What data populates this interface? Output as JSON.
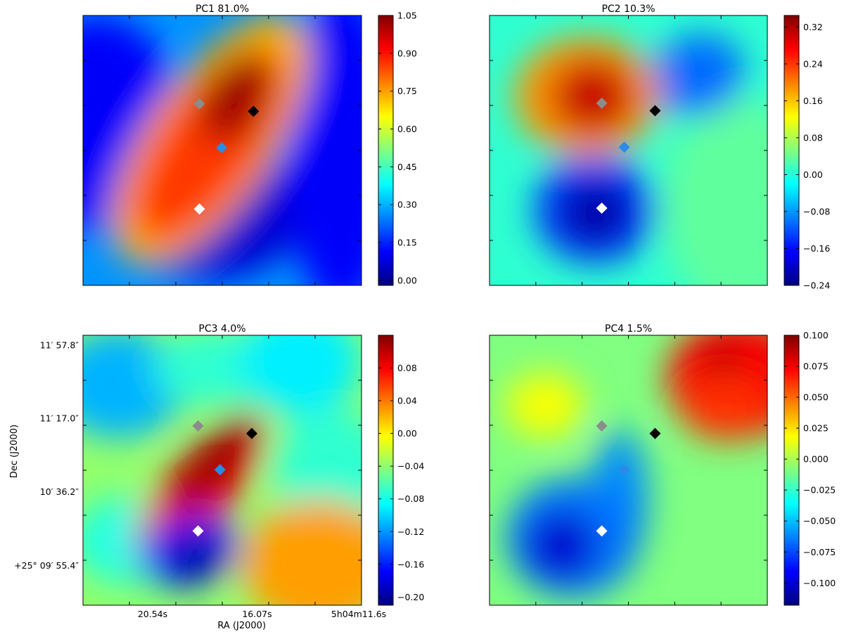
{
  "figure": {
    "xlabel": "RA (J2000)",
    "ylabel": "Dec (J2000)",
    "x_tick_labels": [
      "20.54s",
      "16.07s",
      "5h04m11.6s"
    ],
    "y_tick_labels": [
      "11′ 57.8″",
      "11′ 17.0″",
      "10′ 36.2″",
      "+25° 09′ 55.4″"
    ],
    "marker_colors": {
      "gray": "#8c8c8c",
      "black": "#000000",
      "blue": "#2a8ce8",
      "white": "#ffffff"
    }
  },
  "chart_data": [
    {
      "type": "heatmap",
      "title": "PC1 81.0%",
      "colormap": "jet",
      "clim": [
        -0.02,
        1.05
      ],
      "colorbar_ticks": [
        {
          "label": "1.05",
          "value": 1.05
        },
        {
          "label": "0.90",
          "value": 0.9
        },
        {
          "label": "0.75",
          "value": 0.75
        },
        {
          "label": "0.60",
          "value": 0.6
        },
        {
          "label": "0.45",
          "value": 0.45
        },
        {
          "label": "0.30",
          "value": 0.3
        },
        {
          "label": "0.15",
          "value": 0.15
        },
        {
          "label": "0.00",
          "value": 0.0
        }
      ],
      "markers": [
        "gray",
        "black",
        "blue",
        "white"
      ]
    },
    {
      "type": "heatmap",
      "title": "PC2 10.3%",
      "colormap": "jet",
      "clim": [
        -0.24,
        0.345
      ],
      "colorbar_ticks": [
        {
          "label": "0.32",
          "value": 0.32
        },
        {
          "label": "0.24",
          "value": 0.24
        },
        {
          "label": "0.16",
          "value": 0.16
        },
        {
          "label": "0.08",
          "value": 0.08
        },
        {
          "label": "0.00",
          "value": 0.0
        },
        {
          "label": "−0.08",
          "value": -0.08
        },
        {
          "label": "−0.16",
          "value": -0.16
        },
        {
          "label": "−0.24",
          "value": -0.24
        }
      ],
      "markers": [
        "gray",
        "black",
        "blue",
        "white"
      ]
    },
    {
      "type": "heatmap",
      "title": "PC3 4.0%",
      "colormap": "jet",
      "clim": [
        -0.21,
        0.12
      ],
      "colorbar_ticks": [
        {
          "label": "0.08",
          "value": 0.08
        },
        {
          "label": "0.04",
          "value": 0.04
        },
        {
          "label": "0.00",
          "value": 0.0
        },
        {
          "label": "−0.04",
          "value": -0.04
        },
        {
          "label": "−0.08",
          "value": -0.08
        },
        {
          "label": "−0.12",
          "value": -0.12
        },
        {
          "label": "−0.16",
          "value": -0.16
        },
        {
          "label": "−0.20",
          "value": -0.2
        }
      ],
      "markers": [
        "gray",
        "black",
        "blue",
        "white"
      ]
    },
    {
      "type": "heatmap",
      "title": "PC4 1.5%",
      "colormap": "jet",
      "clim": [
        -0.118,
        0.1
      ],
      "colorbar_ticks": [
        {
          "label": "0.100",
          "value": 0.1
        },
        {
          "label": "0.075",
          "value": 0.075
        },
        {
          "label": "0.050",
          "value": 0.05
        },
        {
          "label": "0.025",
          "value": 0.025
        },
        {
          "label": "0.000",
          "value": 0.0
        },
        {
          "label": "−0.025",
          "value": -0.025
        },
        {
          "label": "−0.050",
          "value": -0.05
        },
        {
          "label": "−0.075",
          "value": -0.075
        },
        {
          "label": "−0.100",
          "value": -0.1
        }
      ],
      "markers": [
        "gray",
        "black",
        "blue",
        "white"
      ]
    }
  ]
}
